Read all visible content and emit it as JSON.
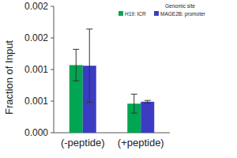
{
  "chart_data": {
    "type": "bar",
    "y_label": "Fraction of  Input",
    "legend_title": "Genomic site",
    "categories": [
      "(-peptide)",
      "(+peptide)"
    ],
    "series": [
      {
        "name": "H19: ICR",
        "color": "#00a651",
        "values": [
          0.00107,
          0.00046
        ],
        "errors": [
          0.00025,
          0.00015
        ]
      },
      {
        "name": "MAGE2B: promoter",
        "color": "#3b3bc4",
        "values": [
          0.00106,
          0.00049
        ],
        "errors": [
          0.00058,
          2e-05
        ]
      }
    ],
    "ylim": [
      0,
      0.002
    ],
    "yticks": [
      {
        "value": 0,
        "label": "0.000"
      },
      {
        "value": 0.0005,
        "label": "0.001"
      },
      {
        "value": 0.001,
        "label": "0.001"
      },
      {
        "value": 0.0015,
        "label": "0.002"
      },
      {
        "value": 0.002,
        "label": "0.002"
      }
    ],
    "grid": false,
    "legend": "upper right"
  }
}
